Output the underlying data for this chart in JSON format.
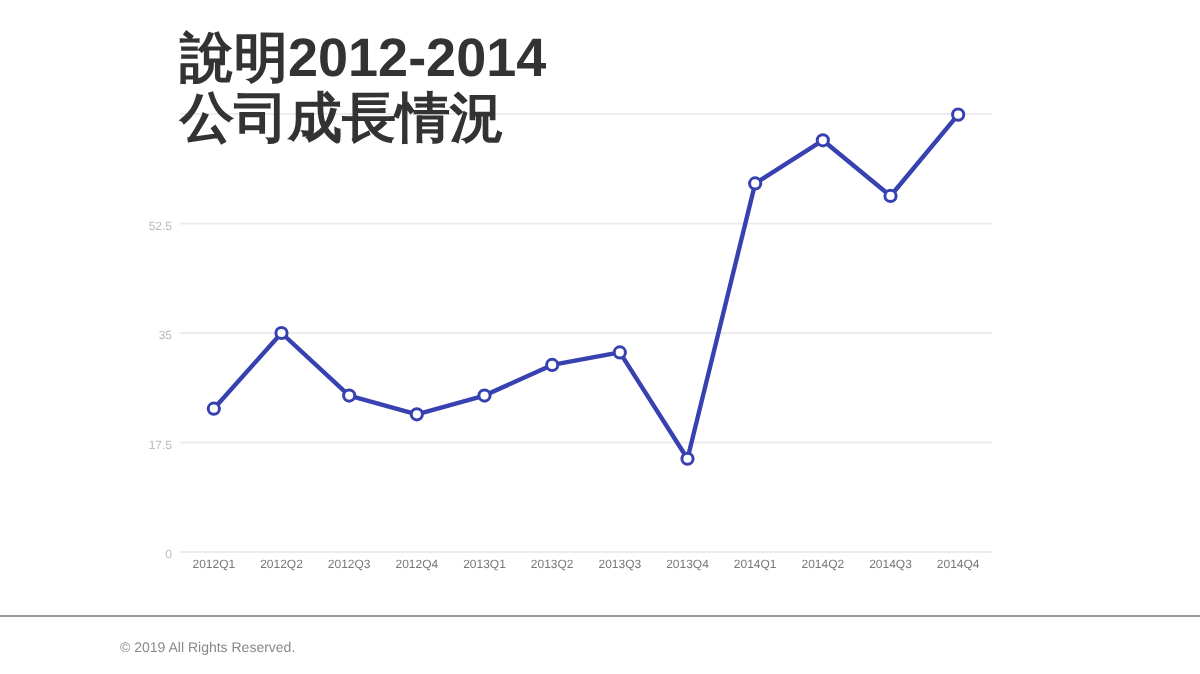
{
  "chart_data": {
    "type": "line",
    "title": "說明2012-2014\n公司成長情況",
    "categories": [
      "2012Q1",
      "2012Q2",
      "2012Q3",
      "2012Q4",
      "2013Q1",
      "2013Q2",
      "2013Q3",
      "2013Q4",
      "2014Q1",
      "2014Q2",
      "2014Q3",
      "2014Q4"
    ],
    "series": [
      {
        "color": "#3742b0",
        "values": [
          22.9,
          35,
          25,
          22,
          25,
          29.9,
          31.9,
          14.9,
          58.9,
          65.8,
          56.9,
          69.9
        ]
      }
    ],
    "ylim": [
      0,
      70
    ],
    "yticks": [
      0,
      17.5,
      35,
      52.5,
      {
        "value": 70,
        "label": null
      }
    ],
    "grid": "y",
    "marker": "circle",
    "line_style": "solid",
    "annotations": [
      "© 2019 All Rights Reserved."
    ]
  }
}
